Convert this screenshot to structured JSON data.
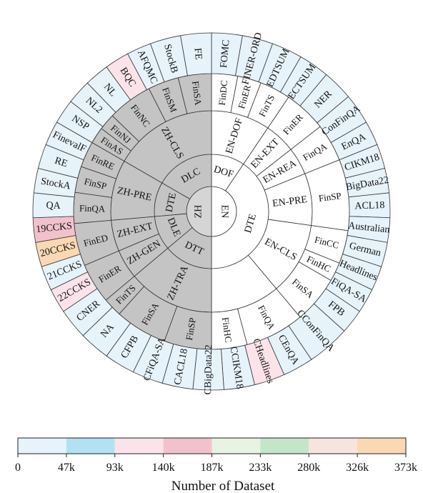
{
  "chart_data": {
    "type": "sunburst",
    "center": {
      "x": 296,
      "y": 296
    },
    "colors": {
      "bins": [
        "#e6f3fb",
        "#b2e1f3",
        "#fbe3ea",
        "#f2c2cc",
        "#e7f3e3",
        "#c4e6c8",
        "#f7e4df",
        "#f9d8b3"
      ],
      "inner_left": "#c4c4c4",
      "inner_mid_left": "#d5d5d5",
      "inner_right": "#ffffff",
      "stroke": "#333333"
    },
    "colorbar": {
      "label": "Number of Dataset",
      "ticks": [
        "0",
        "47k",
        "93k",
        "140k",
        "187k",
        "233k",
        "280k",
        "326k",
        "373k"
      ]
    },
    "rings": {
      "level1": [
        {
          "label": "EN",
          "a0": 0,
          "a1": 180
        },
        {
          "label": "ZH",
          "a0": 180,
          "a1": 360
        }
      ],
      "level2": [
        {
          "label": "DOF",
          "a0": 0,
          "a1": 34
        },
        {
          "label": "DTE",
          "a0": 34,
          "a1": 180
        },
        {
          "label": "DTT",
          "a0": 180,
          "a1": 230
        },
        {
          "label": "DLE",
          "a0": 230,
          "a1": 265
        },
        {
          "label": "DTE",
          "a0": 265,
          "a1": 300
        },
        {
          "label": "DLC",
          "a0": 300,
          "a1": 360
        }
      ],
      "level3": [
        {
          "label": "EN-DOF",
          "a0": 0,
          "a1": 34
        },
        {
          "label": "EN-EXT",
          "a0": 34,
          "a1": 52
        },
        {
          "label": "EN-REA",
          "a0": 52,
          "a1": 68
        },
        {
          "label": "EN-PRE",
          "a0": 68,
          "a1": 98
        },
        {
          "label": "EN-CLS",
          "a0": 98,
          "a1": 140
        },
        {
          "label": "",
          "a0": 140,
          "a1": 180
        },
        {
          "label": "ZH-TRA",
          "a0": 180,
          "a1": 230
        },
        {
          "label": "ZH-GEN",
          "a0": 230,
          "a1": 247
        },
        {
          "label": "ZH-EXT",
          "a0": 247,
          "a1": 265
        },
        {
          "label": "ZH-PRE",
          "a0": 265,
          "a1": 300
        },
        {
          "label": "ZH-CLS",
          "a0": 300,
          "a1": 360
        }
      ],
      "level4": [
        {
          "label": "FinDC",
          "a0": 0,
          "a1": 11
        },
        {
          "label": "FinER",
          "a0": 11,
          "a1": 21
        },
        {
          "label": "FinTS",
          "a0": 21,
          "a1": 34
        },
        {
          "label": "FinER",
          "a0": 34,
          "a1": 52
        },
        {
          "label": "FinQA",
          "a0": 52,
          "a1": 68
        },
        {
          "label": "FinSP",
          "a0": 68,
          "a1": 98
        },
        {
          "label": "FinCC",
          "a0": 98,
          "a1": 112
        },
        {
          "label": "FinHC",
          "a0": 112,
          "a1": 120
        },
        {
          "label": "FinSA",
          "a0": 120,
          "a1": 140
        },
        {
          "label": "FinQA",
          "a0": 140,
          "a1": 165
        },
        {
          "label": "FinHC",
          "a0": 165,
          "a1": 180
        },
        {
          "label": "FinSP",
          "a0": 180,
          "a1": 200
        },
        {
          "label": "FinSA",
          "a0": 200,
          "a1": 222
        },
        {
          "label": "FinTS",
          "a0": 222,
          "a1": 230
        },
        {
          "label": "FinER",
          "a0": 230,
          "a1": 247
        },
        {
          "label": "FinED",
          "a0": 247,
          "a1": 265
        },
        {
          "label": "FinQA",
          "a0": 265,
          "a1": 278
        },
        {
          "label": "FinSP",
          "a0": 278,
          "a1": 289
        },
        {
          "label": "FinRE",
          "a0": 289,
          "a1": 300
        },
        {
          "label": "FinAS",
          "a0": 300,
          "a1": 307
        },
        {
          "label": "FinNJ",
          "a0": 307,
          "a1": 314
        },
        {
          "label": "FinNC",
          "a0": 314,
          "a1": 333
        },
        {
          "label": "FinSM",
          "a0": 333,
          "a1": 346
        },
        {
          "label": "FinSA",
          "a0": 346,
          "a1": 360
        }
      ],
      "level5": [
        {
          "label": "FOMC",
          "a0": 0,
          "a1": 10,
          "bin": 0
        },
        {
          "label": "FINER-ORD",
          "a0": 10,
          "a1": 20,
          "bin": 0
        },
        {
          "label": "EDTSUM",
          "a0": 20,
          "a1": 30,
          "bin": 0
        },
        {
          "label": "ECTSUM",
          "a0": 30,
          "a1": 40,
          "bin": 0
        },
        {
          "label": "NER",
          "a0": 40,
          "a1": 50,
          "bin": 0
        },
        {
          "label": "ConFinQA",
          "a0": 50,
          "a1": 60,
          "bin": 0
        },
        {
          "label": "EnQA",
          "a0": 60,
          "a1": 68,
          "bin": 0
        },
        {
          "label": "CIKM18",
          "a0": 68,
          "a1": 76,
          "bin": 0
        },
        {
          "label": "BigData22",
          "a0": 76,
          "a1": 84,
          "bin": 0
        },
        {
          "label": "ACL18",
          "a0": 84,
          "a1": 92,
          "bin": 0
        },
        {
          "label": "Australian",
          "a0": 92,
          "a1": 100,
          "bin": 0
        },
        {
          "label": "German",
          "a0": 100,
          "a1": 108,
          "bin": 0
        },
        {
          "label": "Headlines",
          "a0": 108,
          "a1": 116,
          "bin": 0
        },
        {
          "label": "FiQA-SA",
          "a0": 116,
          "a1": 124,
          "bin": 0
        },
        {
          "label": "FPB",
          "a0": 124,
          "a1": 132,
          "bin": 0
        },
        {
          "label": "CConFinQA",
          "a0": 132,
          "a1": 146,
          "bin": 0
        },
        {
          "label": "CEnQA",
          "a0": 146,
          "a1": 156,
          "bin": 0
        },
        {
          "label": "CHeadlines",
          "a0": 156,
          "a1": 166,
          "bin": 2
        },
        {
          "label": "CCIKM18",
          "a0": 166,
          "a1": 176,
          "bin": 0
        },
        {
          "label": "CBigData22",
          "a0": 176,
          "a1": 186,
          "bin": 0
        },
        {
          "label": "CACL18",
          "a0": 186,
          "a1": 196,
          "bin": 0
        },
        {
          "label": "CFiQA-SA",
          "a0": 196,
          "a1": 206,
          "bin": 0
        },
        {
          "label": "CFPB",
          "a0": 206,
          "a1": 216,
          "bin": 0
        },
        {
          "label": "NA",
          "a0": 216,
          "a1": 226,
          "bin": 0
        },
        {
          "label": "CNER",
          "a0": 226,
          "a1": 236,
          "bin": 0
        },
        {
          "label": "22CCKS",
          "a0": 236,
          "a1": 244,
          "bin": 2
        },
        {
          "label": "21CCKS",
          "a0": 244,
          "a1": 252,
          "bin": 0
        },
        {
          "label": "20CCKS",
          "a0": 252,
          "a1": 260,
          "bin": 7
        },
        {
          "label": "19CCKS",
          "a0": 260,
          "a1": 268,
          "bin": 3
        },
        {
          "label": "QA",
          "a0": 268,
          "a1": 276,
          "bin": 0
        },
        {
          "label": "StockA",
          "a0": 276,
          "a1": 284,
          "bin": 0
        },
        {
          "label": "RE",
          "a0": 284,
          "a1": 292,
          "bin": 0
        },
        {
          "label": "FinevalF",
          "a0": 292,
          "a1": 300,
          "bin": 0
        },
        {
          "label": "NSP",
          "a0": 300,
          "a1": 308,
          "bin": 0
        },
        {
          "label": "NL2",
          "a0": 308,
          "a1": 316,
          "bin": 0
        },
        {
          "label": "NL",
          "a0": 316,
          "a1": 324,
          "bin": 0
        },
        {
          "label": "BQC",
          "a0": 324,
          "a1": 332,
          "bin": 2
        },
        {
          "label": "AFQMC",
          "a0": 332,
          "a1": 340,
          "bin": 0
        },
        {
          "label": "StockB",
          "a0": 340,
          "a1": 350,
          "bin": 0
        },
        {
          "label": "FE",
          "a0": 350,
          "a1": 360,
          "bin": 0
        }
      ]
    }
  }
}
